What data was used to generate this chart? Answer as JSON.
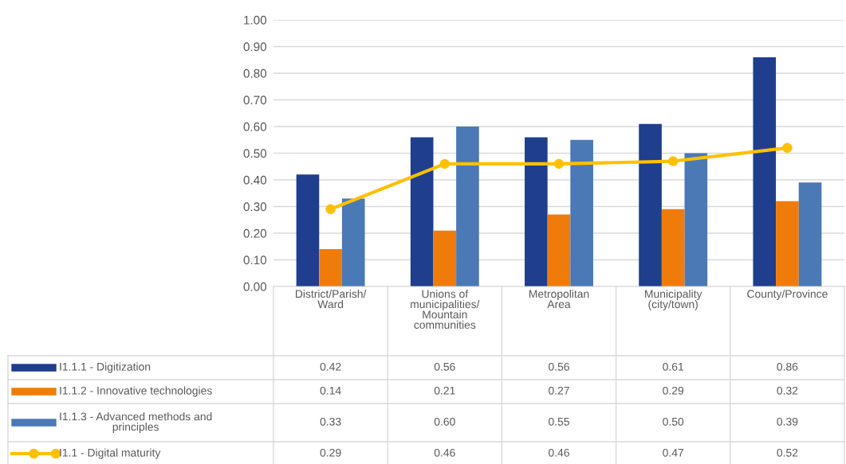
{
  "chart_data": {
    "type": "bar",
    "categories": [
      "District/Parish/Ward",
      "Unions of municipalities/Mountain communities",
      "Metropolitan Area",
      "Municipality (city/town)",
      "County/Province"
    ],
    "series": [
      {
        "name": "I1.1.1 - Digitization",
        "color": "#1f3e8e",
        "values": [
          0.42,
          0.56,
          0.56,
          0.61,
          0.86
        ],
        "value_labels": [
          "0.42",
          "0.56",
          "0.56",
          "0.61",
          "0.86"
        ]
      },
      {
        "name": "I1.1.2 - Innovative technologies",
        "color": "#ef7c0a",
        "values": [
          0.14,
          0.21,
          0.27,
          0.29,
          0.32
        ],
        "value_labels": [
          "0.14",
          "0.21",
          "0.27",
          "0.29",
          "0.32"
        ]
      },
      {
        "name": "I1.1.3 - Advanced methods and principles",
        "color": "#4a79b5",
        "values": [
          0.33,
          0.6,
          0.55,
          0.5,
          0.39
        ],
        "value_labels": [
          "0.33",
          "0.60",
          "0.55",
          "0.50",
          "0.39"
        ]
      },
      {
        "name": "I1.1 - Digital maturity",
        "color": "#ffc000",
        "type": "line",
        "marker": "circle",
        "values": [
          0.29,
          0.46,
          0.46,
          0.47,
          0.52
        ],
        "value_labels": [
          "0.29",
          "0.46",
          "0.46",
          "0.47",
          "0.52"
        ]
      }
    ],
    "ylim": [
      0,
      1
    ],
    "yticks": [
      {
        "value": 0,
        "label": "0.00"
      },
      {
        "value": 0.1,
        "label": "0.10"
      },
      {
        "value": 0.2,
        "label": "0.20"
      },
      {
        "value": 0.3,
        "label": "0.30"
      },
      {
        "value": 0.4,
        "label": "0.40"
      },
      {
        "value": 0.5,
        "label": "0.50"
      },
      {
        "value": 0.6,
        "label": "0.60"
      },
      {
        "value": 0.7,
        "label": "0.70"
      },
      {
        "value": 0.8,
        "label": "0.80"
      },
      {
        "value": 0.9,
        "label": "0.90"
      },
      {
        "value": 1.0,
        "label": "1.00"
      }
    ],
    "grid": "y",
    "legend": "bottom"
  }
}
